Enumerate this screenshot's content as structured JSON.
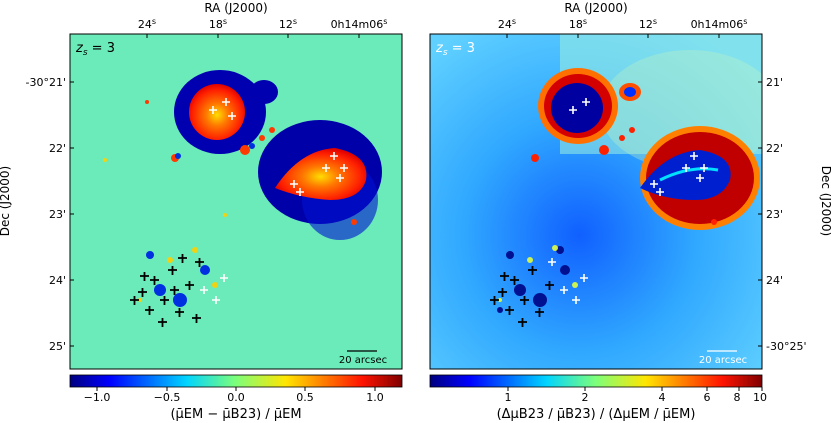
{
  "left_panel": {
    "label": "z_s = 3",
    "label_sub": "s",
    "ra_title": "RA (J2000)",
    "ra_ticks": [
      "24",
      "18",
      "12",
      "0h14m06"
    ],
    "dec_title": "Dec (J2000)",
    "dec_ticks": [
      "-30°21'",
      "22'",
      "23'",
      "24'",
      "25'"
    ],
    "scalebar_label": "20 arcsec",
    "colorbar": {
      "ticks": [
        "−1.0",
        "−0.5",
        "0.0",
        "0.5",
        "1.0"
      ],
      "tick_values": [
        -1.0,
        -0.5,
        0.0,
        0.5,
        1.0
      ],
      "range": [
        -1.2,
        1.2
      ],
      "label": "(μ̄EM − μ̄B23) / μ̄EM",
      "colormap": "jet"
    },
    "markers": {
      "black_cross": "#000000",
      "white_cross": "#ffffff"
    }
  },
  "right_panel": {
    "label": "z_s = 3",
    "ra_title": "RA (J2000)",
    "ra_ticks": [
      "24",
      "18",
      "12",
      "0h14m06"
    ],
    "dec_title": "Dec (J2000)",
    "dec_ticks": [
      "21'",
      "22'",
      "23'",
      "24'",
      "-30°25'"
    ],
    "scalebar_label": "20 arcsec",
    "colorbar": {
      "ticks": [
        "1",
        "2",
        "4",
        "6",
        "8",
        "10"
      ],
      "tick_values": [
        1,
        2,
        4,
        6,
        8,
        10
      ],
      "range": [
        0.5,
        10
      ],
      "scale": "log",
      "label": "(ΔμB23 / μ̄B23) / (ΔμEM / μ̄EM)",
      "colormap": "jet"
    }
  },
  "tick_superscripts": {
    "seconds": "s",
    "hours": "h",
    "minutes": "m"
  }
}
